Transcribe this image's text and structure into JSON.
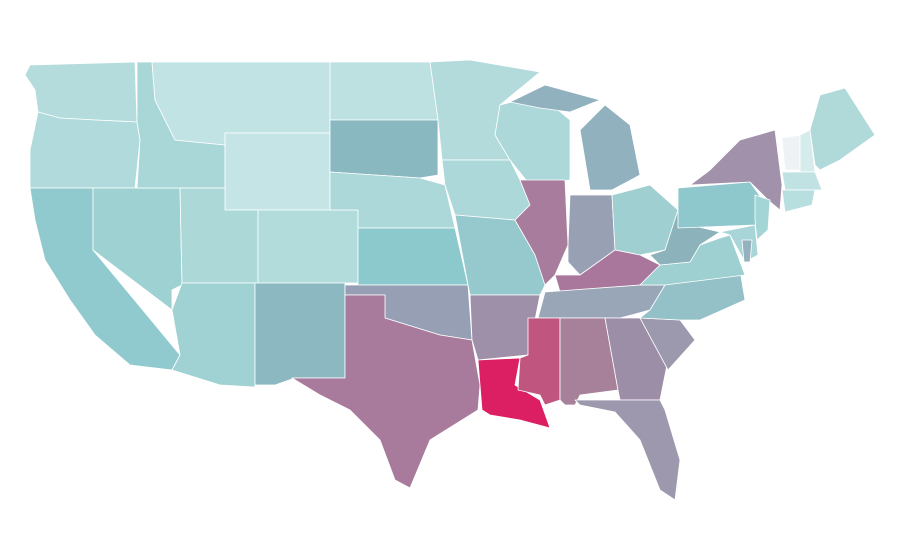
{
  "map": {
    "background": "#ffffff",
    "border_color": "#ffffff",
    "regions": [
      {
        "color": "#b4dcdc"
      },
      {
        "color": "#b0dadb"
      },
      {
        "color": "#90cace"
      },
      {
        "color": "#9ed1d2"
      },
      {
        "color": "#a9d7d8"
      },
      {
        "color": "#c2e3e4"
      },
      {
        "color": "#c4e4e5"
      },
      {
        "color": "#acd8d8"
      },
      {
        "color": "#b2dbdc"
      },
      {
        "color": "#a0d2d4"
      },
      {
        "color": "#8cb9c1"
      },
      {
        "color": "#bde0e1"
      },
      {
        "color": "#8ab8c0"
      },
      {
        "color": "#acd8d9"
      },
      {
        "color": "#8cc9cd"
      },
      {
        "color": "#969fb4"
      },
      {
        "color": "#a87a9c"
      },
      {
        "color": "#b3dbdc"
      },
      {
        "color": "#acd8d9"
      },
      {
        "color": "#95c9cd"
      },
      {
        "color": "#9e90a9"
      },
      {
        "color": "#dc1e62"
      },
      {
        "color": "#acd8d9"
      },
      {
        "color": "#a87c9d"
      },
      {
        "color": "#92b1bf"
      },
      {
        "color": "#98a1b4"
      },
      {
        "color": "#9fcfd1"
      },
      {
        "color": "#a9779c"
      },
      {
        "color": "#99a6b7"
      },
      {
        "color": "#c0557f"
      },
      {
        "color": "#a68199"
      },
      {
        "color": "#9d8ea8"
      },
      {
        "color": "#9d98ad"
      },
      {
        "color": "#9c98ae"
      },
      {
        "color": "#94c0c7"
      },
      {
        "color": "#9ecfd1"
      },
      {
        "color": "#8cb2bc"
      },
      {
        "color": "#8fc8cc"
      },
      {
        "color": "#a291ab"
      },
      {
        "color": "#a4d5d6"
      },
      {
        "color": "#a8d6d8"
      },
      {
        "color": "#eef2f4"
      },
      {
        "color": "#d6ecec"
      },
      {
        "color": "#b0d9da"
      },
      {
        "color": "#c0e2e3"
      },
      {
        "color": "#b8dfe0"
      },
      {
        "color": "#93b2bd"
      }
    ]
  }
}
